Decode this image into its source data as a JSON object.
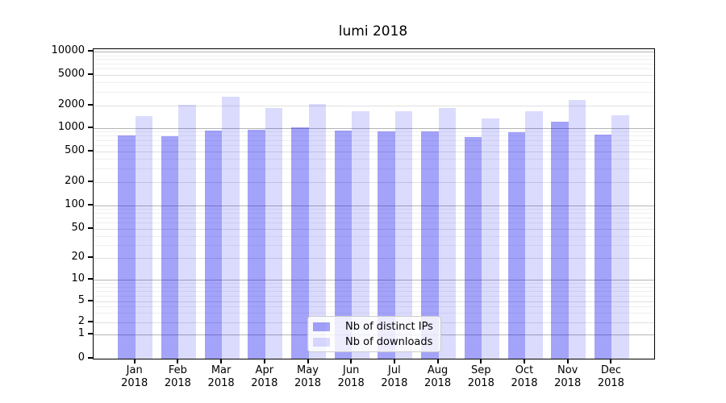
{
  "title": "lumi 2018",
  "chart_data": {
    "type": "bar",
    "title": "lumi 2018",
    "categories": [
      "Jan 2018",
      "Feb 2018",
      "Mar 2018",
      "Apr 2018",
      "May 2018",
      "Jun 2018",
      "Jul 2018",
      "Aug 2018",
      "Sep 2018",
      "Oct 2018",
      "Nov 2018",
      "Dec 2018"
    ],
    "x_tick_labels": [
      {
        "month": "Jan",
        "year": "2018"
      },
      {
        "month": "Feb",
        "year": "2018"
      },
      {
        "month": "Mar",
        "year": "2018"
      },
      {
        "month": "Apr",
        "year": "2018"
      },
      {
        "month": "May",
        "year": "2018"
      },
      {
        "month": "Jun",
        "year": "2018"
      },
      {
        "month": "Jul",
        "year": "2018"
      },
      {
        "month": "Aug",
        "year": "2018"
      },
      {
        "month": "Sep",
        "year": "2018"
      },
      {
        "month": "Oct",
        "year": "2018"
      },
      {
        "month": "Nov",
        "year": "2018"
      },
      {
        "month": "Dec",
        "year": "2018"
      }
    ],
    "series": [
      {
        "name": "Nb of distinct IPs",
        "color": "#a3a3f9",
        "values": [
          800,
          780,
          930,
          940,
          1030,
          930,
          900,
          910,
          760,
          890,
          1220,
          830
        ]
      },
      {
        "name": "Nb of downloads",
        "color": "#dbdbfc",
        "values": [
          1440,
          2050,
          2600,
          1850,
          2100,
          1700,
          1700,
          1850,
          1350,
          1700,
          2400,
          1500
        ]
      }
    ],
    "xlabel": "",
    "ylabel": "",
    "yscale": "symlog",
    "ylim": [
      0,
      10000
    ],
    "yticks": [
      {
        "label": "0",
        "value": 0
      },
      {
        "label": "1",
        "value": 1
      },
      {
        "label": "2",
        "value": 2
      },
      {
        "label": "5",
        "value": 5
      },
      {
        "label": "10",
        "value": 10
      },
      {
        "label": "20",
        "value": 20
      },
      {
        "label": "50",
        "value": 50
      },
      {
        "label": "100",
        "value": 100
      },
      {
        "label": "200",
        "value": 200
      },
      {
        "label": "500",
        "value": 500
      },
      {
        "label": "1000",
        "value": 1000
      },
      {
        "label": "2000",
        "value": 2000
      },
      {
        "label": "5000",
        "value": 5000
      },
      {
        "label": "10000",
        "value": 10000
      }
    ],
    "grid": true,
    "legend_position": "lower center"
  },
  "legend": {
    "items": [
      "Nb of distinct IPs",
      "Nb of downloads"
    ]
  }
}
